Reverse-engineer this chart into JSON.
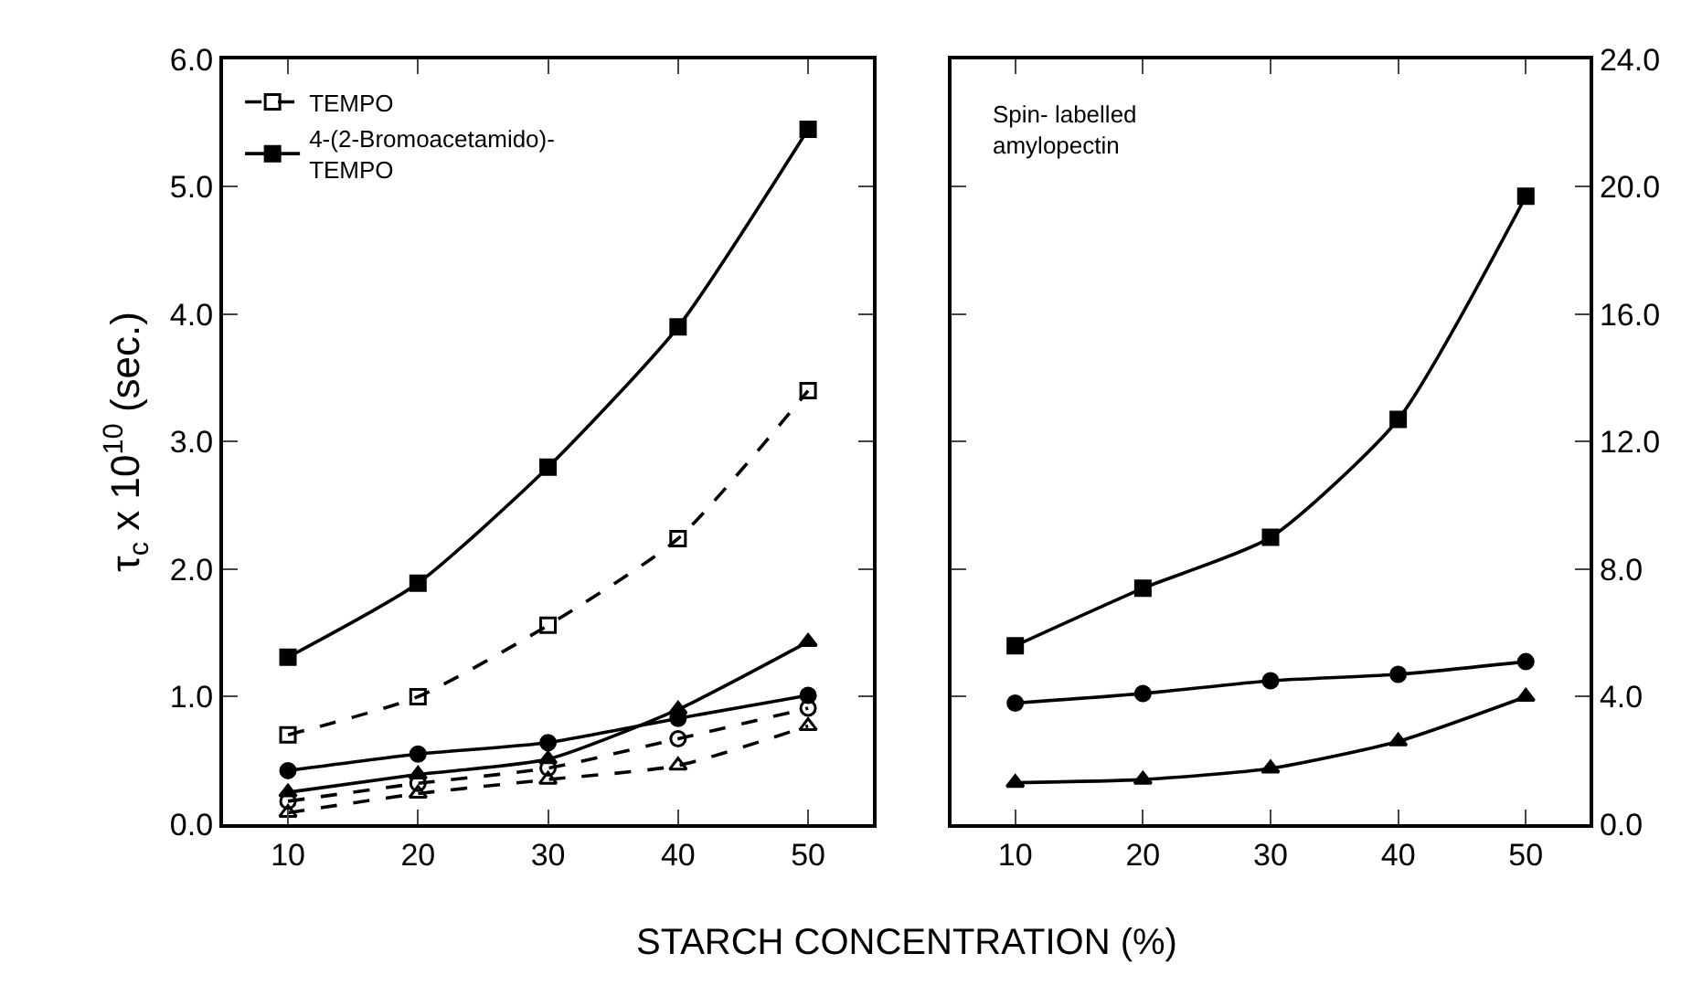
{
  "chart_data": [
    {
      "type": "line",
      "xlabel": "STARCH CONCENTRATION (%)",
      "ylabel": "τ$_{c}$ x 10$^{10}$ (sec.)",
      "x": [
        10,
        20,
        30,
        40,
        50
      ],
      "xlim": [
        5,
        55
      ],
      "xticks": [
        10,
        20,
        30,
        40,
        50
      ],
      "ylim": [
        0,
        6
      ],
      "yticks": [
        {
          "value": 0,
          "label": "0.0"
        },
        {
          "value": 1,
          "label": "1.0"
        },
        {
          "value": 2,
          "label": "2.0"
        },
        {
          "value": 3,
          "label": "3.0"
        },
        {
          "value": 4,
          "label": "4.0"
        },
        {
          "value": 5,
          "label": "5.0"
        },
        {
          "value": 6,
          "label": "6.0"
        }
      ],
      "legend": "top left",
      "series": [
        {
          "name": "TEMPO",
          "color": "#000000",
          "line_style": "dashed",
          "marker": "square",
          "values": [
            0.7,
            1.0,
            1.56,
            2.24,
            3.4
          ]
        },
        {
          "name": "4-(2-Bromoacetamido)-\nTEMPO",
          "color": "#000000",
          "line_style": "solid",
          "marker": "square",
          "values": [
            1.31,
            1.89,
            2.8,
            3.9,
            5.45
          ]
        },
        {
          "color": "#000000",
          "line_style": "solid",
          "marker": "triangle",
          "values": [
            0.25,
            0.39,
            0.51,
            0.9,
            1.43
          ]
        },
        {
          "color": "#000000",
          "line_style": "solid",
          "marker": "circle",
          "values": [
            0.42,
            0.55,
            0.64,
            0.83,
            1.01
          ]
        },
        {
          "color": "#000000",
          "line_style": "dashed",
          "marker": "circle",
          "values": [
            0.18,
            0.32,
            0.44,
            0.67,
            0.91
          ]
        },
        {
          "color": "#000000",
          "line_style": "dashed",
          "marker": "triangle",
          "values": [
            0.09,
            0.24,
            0.35,
            0.46,
            0.77
          ]
        }
      ]
    },
    {
      "type": "line",
      "x": [
        10,
        20,
        30,
        40,
        50
      ],
      "xlim": [
        5,
        55
      ],
      "xticks": [
        10,
        20,
        30,
        40,
        50
      ],
      "ylim": [
        0,
        24
      ],
      "yticks": [
        {
          "value": 0,
          "label": "0.0"
        },
        {
          "value": 4,
          "label": "4.0"
        },
        {
          "value": 8,
          "label": "8.0"
        },
        {
          "value": 12,
          "label": "12.0"
        },
        {
          "value": 16,
          "label": "16.0"
        },
        {
          "value": 20,
          "label": "20.0"
        },
        {
          "value": 24,
          "label": "24.0"
        }
      ],
      "annotations": [
        "Spin- labelled\namylopectin"
      ],
      "series": [
        {
          "color": "#000000",
          "line_style": "solid",
          "marker": "square",
          "values": [
            5.6,
            7.4,
            9.0,
            12.7,
            19.7
          ]
        },
        {
          "color": "#000000",
          "line_style": "solid",
          "marker": "circle",
          "values": [
            3.8,
            4.1,
            4.5,
            4.7,
            5.1
          ]
        },
        {
          "color": "#000000",
          "line_style": "solid",
          "marker": "triangle",
          "values": [
            1.3,
            1.4,
            1.75,
            2.6,
            4.0
          ]
        }
      ]
    }
  ]
}
